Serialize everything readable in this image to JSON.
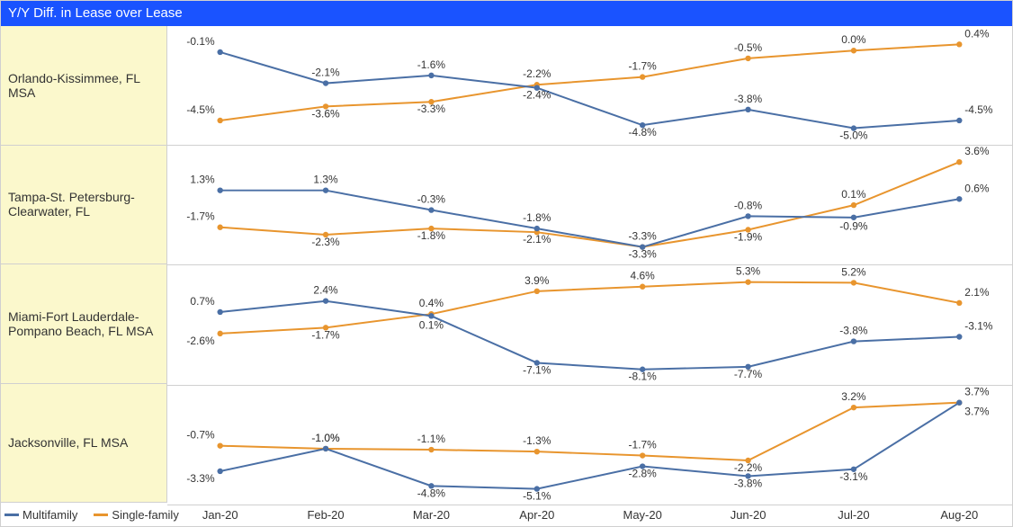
{
  "title": "Y/Y Diff. in Lease over Lease",
  "header_bg": "#1a53ff",
  "header_text_color": "#ffffff",
  "label_bg": "#fbf8cc",
  "border_color": "#d0d0d0",
  "series_colors": {
    "multifamily": "#4a6fa5",
    "single_family": "#e8952e"
  },
  "legend": [
    {
      "label": "Multifamily",
      "color": "#4a6fa5"
    },
    {
      "label": "Single-family",
      "color": "#e8952e"
    }
  ],
  "x_categories": [
    "Jan-20",
    "Feb-20",
    "Mar-20",
    "Apr-20",
    "May-20",
    "Jun-20",
    "Jul-20",
    "Aug-20"
  ],
  "label_fontsize": 12,
  "marker_radius": 3.2,
  "line_width": 2,
  "panels": [
    {
      "name": "Orlando-Kissimmee, FL MSA",
      "y_min": -5.5,
      "y_max": 1.0,
      "multifamily": [
        -0.1,
        -2.1,
        -1.6,
        -2.4,
        -4.8,
        -3.8,
        -5.0,
        -4.5
      ],
      "single_family": [
        -4.5,
        -3.6,
        -3.3,
        -2.2,
        -1.7,
        -0.5,
        0.0,
        0.4
      ],
      "mf_label_dy": [
        -8,
        -8,
        -8,
        12,
        12,
        -8,
        12,
        -8
      ],
      "sf_label_dy": [
        -8,
        12,
        12,
        -8,
        -8,
        -8,
        -8,
        -8
      ]
    },
    {
      "name": "Tampa-St. Petersburg-Clearwater, FL",
      "y_min": -4.0,
      "y_max": 4.2,
      "multifamily": [
        1.3,
        1.3,
        -0.3,
        -1.8,
        -3.3,
        -0.8,
        -0.9,
        0.6
      ],
      "single_family": [
        -1.7,
        -2.3,
        -1.8,
        -2.1,
        -3.3,
        -1.9,
        0.1,
        3.6
      ],
      "mf_label_dy": [
        -8,
        -8,
        -8,
        -8,
        -8,
        -8,
        14,
        -8
      ],
      "sf_label_dy": [
        -8,
        12,
        12,
        12,
        12,
        12,
        -8,
        -8
      ]
    },
    {
      "name": "Miami-Fort Lauderdale-Pompano Beach, FL MSA",
      "y_min": -9.0,
      "y_max": 6.5,
      "multifamily": [
        0.7,
        2.4,
        0.1,
        -7.1,
        -8.1,
        -7.7,
        -3.8,
        -3.1
      ],
      "single_family": [
        -2.6,
        -1.7,
        0.4,
        3.9,
        4.6,
        5.3,
        5.2,
        2.1
      ],
      "mf_label_dy": [
        -8,
        -8,
        14,
        12,
        12,
        12,
        -8,
        -8
      ],
      "sf_label_dy": [
        12,
        12,
        -8,
        -8,
        -8,
        -8,
        -8,
        -8
      ]
    },
    {
      "name": "Jacksonville, FL MSA",
      "y_min": -5.8,
      "y_max": 4.5,
      "multifamily": [
        -3.3,
        -1.0,
        -4.8,
        -5.1,
        -2.8,
        -3.8,
        -3.1,
        3.7
      ],
      "single_family": [
        -0.7,
        -1.0,
        -1.1,
        -1.3,
        -1.7,
        -2.2,
        3.2,
        3.7
      ],
      "mf_label_dy": [
        12,
        -8,
        12,
        12,
        12,
        12,
        12,
        -8
      ],
      "sf_label_dy": [
        -8,
        -8,
        -8,
        -8,
        -8,
        12,
        -8,
        14
      ]
    }
  ]
}
